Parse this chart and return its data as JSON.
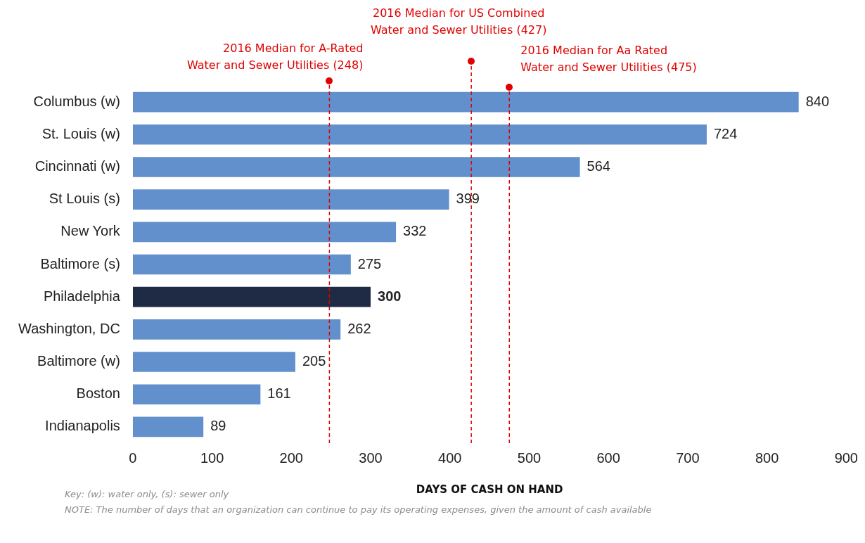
{
  "chart_data": {
    "type": "bar",
    "orientation": "horizontal",
    "xlabel": "DAYS OF CASH ON HAND",
    "categories": [
      "Columbus (w)",
      "St. Louis (w)",
      "Cincinnati (w)",
      "St Louis (s)",
      "New York",
      "Baltimore (s)",
      "Philadelphia",
      "Washington, DC",
      "Baltimore (w)",
      "Boston",
      "Indianapolis"
    ],
    "values": [
      840,
      724,
      564,
      399,
      332,
      275,
      300,
      262,
      205,
      161,
      89
    ],
    "colors": [
      "#6290cc",
      "#6290cc",
      "#6290cc",
      "#6290cc",
      "#6290cc",
      "#6290cc",
      "#1f2a44",
      "#6290cc",
      "#6290cc",
      "#6290cc",
      "#6290cc"
    ],
    "data_labels": true,
    "xlim": [
      0,
      900
    ],
    "xticks": [
      0,
      100,
      200,
      300,
      400,
      500,
      600,
      700,
      800,
      900
    ],
    "grid": false,
    "legend": false,
    "ref_lines": [
      {
        "axis": "x",
        "value": 248,
        "label": "2016 Median for A-Rated\nWater and Sewer Utilities (248)",
        "color": "#e00000",
        "line_style": "dashed"
      },
      {
        "axis": "x",
        "value": 427,
        "label": "2016 Median for US Combined\nWater and Sewer Utilities (427)",
        "color": "#e00000",
        "line_style": "dashed"
      },
      {
        "axis": "x",
        "value": 475,
        "label": "2016 Median for Aa Rated\nWater and Sewer Utilities (475)",
        "color": "#e00000",
        "line_style": "dashed"
      }
    ],
    "annotations": [
      "Key: (w): water only, (s): sewer only",
      "NOTE: The number of days that an organization can continue to pay its operating expenses, given the amount of cash available"
    ]
  }
}
